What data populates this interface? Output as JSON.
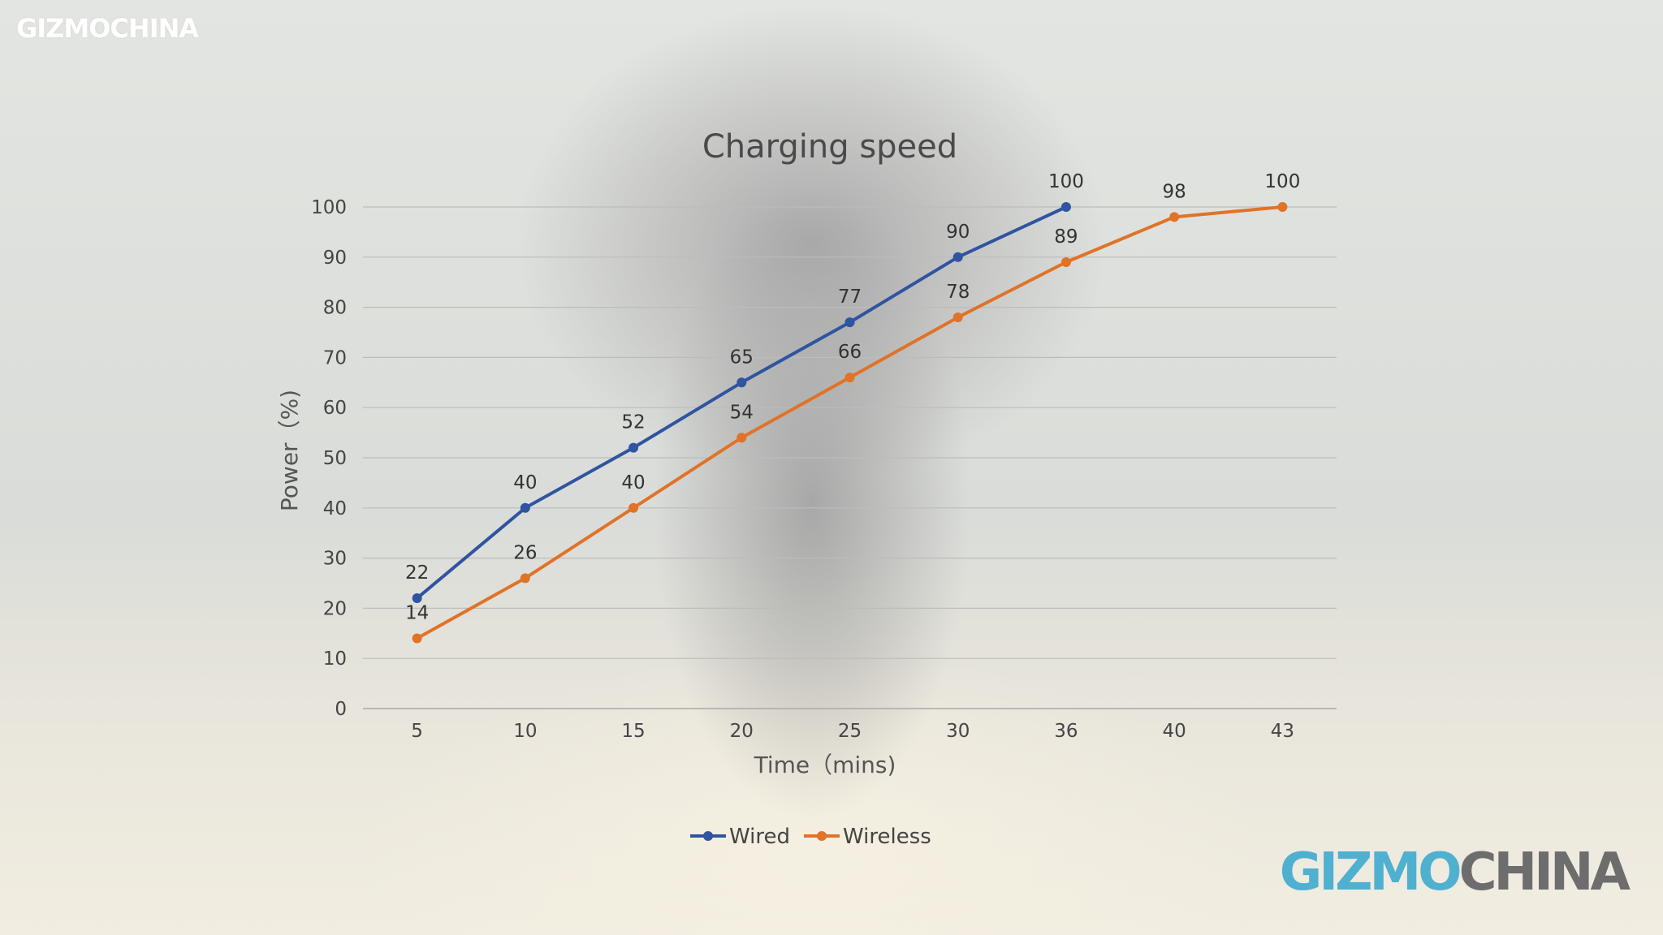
{
  "watermark": {
    "small_logo": "GIZMOCHINA",
    "large_logo_part1": "GIZMO",
    "large_logo_part2": "CHINA",
    "brand_colors": {
      "gizmo": "#4fb0d0",
      "china": "#6d6d6d"
    }
  },
  "chart_data": {
    "type": "line",
    "title": "Charging speed",
    "xlabel": "Time（mins)",
    "ylabel": "Power（%)",
    "categories": [
      "5",
      "10",
      "15",
      "20",
      "25",
      "30",
      "36",
      "40",
      "43"
    ],
    "ylim": [
      0,
      100
    ],
    "yticks": [
      0,
      10,
      20,
      30,
      40,
      50,
      60,
      70,
      80,
      90,
      100
    ],
    "grid": true,
    "legend_position": "bottom",
    "series": [
      {
        "name": "Wired",
        "color": "#2f54a0",
        "values": [
          22,
          40,
          52,
          65,
          77,
          90,
          100,
          null,
          null
        ]
      },
      {
        "name": "Wireless",
        "color": "#e07328",
        "values": [
          14,
          26,
          40,
          54,
          66,
          78,
          89,
          98,
          100
        ]
      }
    ]
  }
}
